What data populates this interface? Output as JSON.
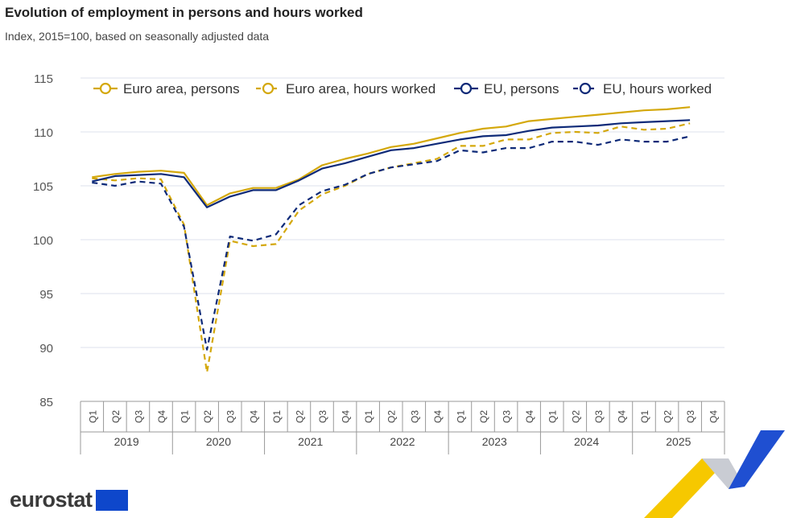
{
  "title": "Evolution of employment in persons and hours worked",
  "subtitle": "Index, 2015=100, based on seasonally adjusted data",
  "logo_text": "eurostat",
  "chart_data": {
    "type": "line",
    "ylim": [
      85,
      115
    ],
    "yticks": [
      85,
      90,
      95,
      100,
      105,
      110,
      115
    ],
    "grid": true,
    "legend_position": "top",
    "years": [
      "2019",
      "2020",
      "2021",
      "2022",
      "2023",
      "2024",
      "2025"
    ],
    "quarters": [
      "Q1",
      "Q2",
      "Q3",
      "Q4"
    ],
    "series": [
      {
        "name": "Euro area, persons",
        "color": "#d4a80c",
        "dash": false,
        "values": [
          105.8,
          106.1,
          106.3,
          106.4,
          106.2,
          103.2,
          104.3,
          104.8,
          104.8,
          105.6,
          106.9,
          107.5,
          108.0,
          108.6,
          108.9,
          109.4,
          109.9,
          110.3,
          110.5,
          111.0,
          111.2,
          111.4,
          111.6,
          111.8,
          112.0,
          112.1,
          112.3
        ]
      },
      {
        "name": "Euro area, hours worked",
        "color": "#d4a80c",
        "dash": true,
        "values": [
          105.7,
          105.5,
          105.7,
          105.6,
          101.4,
          87.7,
          99.9,
          99.4,
          99.6,
          102.7,
          104.2,
          105.0,
          106.1,
          106.7,
          107.1,
          107.5,
          108.7,
          108.7,
          109.3,
          109.3,
          109.9,
          110.0,
          109.9,
          110.5,
          110.2,
          110.3,
          110.8
        ]
      },
      {
        "name": "EU, persons",
        "color": "#0e2a78",
        "dash": false,
        "values": [
          105.4,
          105.9,
          106.0,
          106.1,
          105.8,
          103.0,
          104.0,
          104.6,
          104.6,
          105.5,
          106.6,
          107.1,
          107.7,
          108.3,
          108.5,
          108.9,
          109.3,
          109.6,
          109.7,
          110.1,
          110.4,
          110.5,
          110.6,
          110.8,
          110.9,
          111.0,
          111.1
        ]
      },
      {
        "name": "EU, hours worked",
        "color": "#0e2a78",
        "dash": true,
        "values": [
          105.3,
          105.0,
          105.4,
          105.2,
          101.2,
          89.8,
          100.3,
          99.9,
          100.5,
          103.2,
          104.5,
          105.1,
          106.1,
          106.7,
          107.0,
          107.3,
          108.3,
          108.1,
          108.5,
          108.5,
          109.1,
          109.1,
          108.8,
          109.3,
          109.1,
          109.1,
          109.6
        ]
      }
    ]
  }
}
